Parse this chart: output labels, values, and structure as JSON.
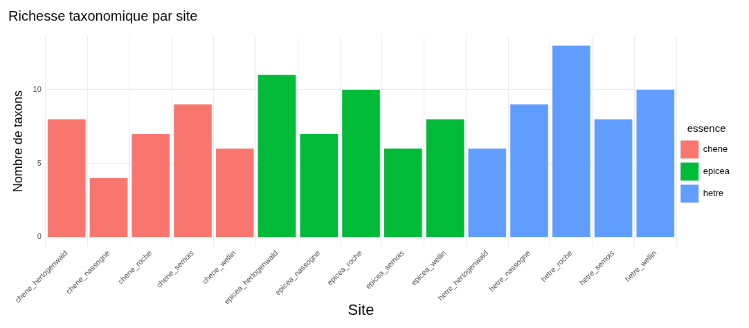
{
  "chart_data": {
    "type": "bar",
    "title": "Richesse taxonomique par site",
    "xlabel": "Site",
    "ylabel": "Nombre de taxons",
    "legend_title": "essence",
    "legend": "right",
    "categories": [
      "chene_hertogenwald",
      "chene_nassogne",
      "chene_roche",
      "chene_semois",
      "chene_wellin",
      "epicea_hertogenwald",
      "epicea_nassogne",
      "epicea_roche",
      "epicea_semois",
      "epicea_wellin",
      "hetre_hertogenwald",
      "hetre_nassogne",
      "hetre_roche",
      "hetre_semois",
      "hetre_wellin"
    ],
    "series": [
      {
        "name": "chene",
        "color": "#f8766d",
        "values": [
          8,
          4,
          7,
          9,
          6,
          null,
          null,
          null,
          null,
          null,
          null,
          null,
          null,
          null,
          null
        ]
      },
      {
        "name": "epicea",
        "color": "#00ba38",
        "values": [
          null,
          null,
          null,
          null,
          null,
          11,
          7,
          10,
          6,
          8,
          null,
          null,
          null,
          null,
          null
        ]
      },
      {
        "name": "hetre",
        "color": "#619cff",
        "values": [
          null,
          null,
          null,
          null,
          null,
          null,
          null,
          null,
          null,
          null,
          6,
          9,
          13,
          8,
          10
        ]
      }
    ],
    "ylim": [
      -0.65,
      13.65
    ],
    "yticks": [
      0,
      5,
      10
    ],
    "grid": true
  }
}
